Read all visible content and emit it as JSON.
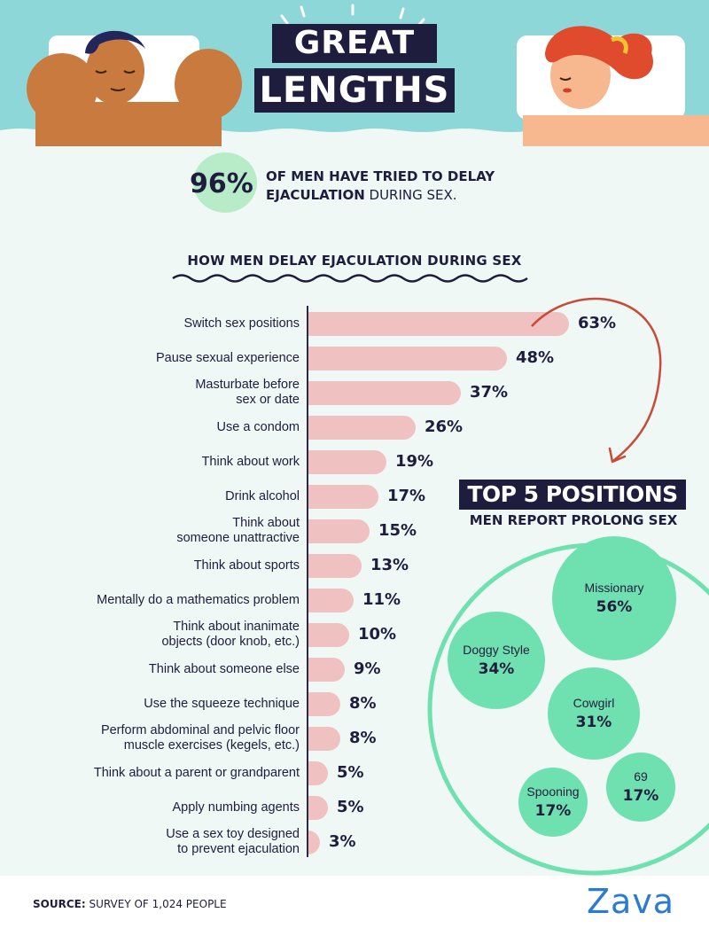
{
  "title": {
    "line1": "GREAT",
    "line2": "LENGTHS"
  },
  "stat": {
    "percent": "96%",
    "text_bold1": "OF MEN HAVE TRIED TO DELAY",
    "text_bold2": "EJACULATION",
    "text_regular": " DURING SEX."
  },
  "chart_data": [
    {
      "type": "bar",
      "orientation": "horizontal",
      "title": "HOW MEN DELAY EJACULATION DURING SEX",
      "categories": [
        "Switch sex positions",
        "Pause sexual experience",
        "Masturbate before sex or date",
        "Use a condom",
        "Think about work",
        "Drink alcohol",
        "Think about someone unattractive",
        "Think about sports",
        "Mentally do a mathematics problem",
        "Think about inanimate objects (door knob, etc.)",
        "Think about someone else",
        "Use the squeeze technique",
        "Perform abdominal and pelvic floor muscle exercises (kegels, etc.)",
        "Think about a parent or grandparent",
        "Apply numbing agents",
        "Use a sex toy designed to prevent ejaculation"
      ],
      "label_lines": [
        [
          "Switch sex positions"
        ],
        [
          "Pause sexual experience"
        ],
        [
          "Masturbate before",
          "sex or date"
        ],
        [
          "Use a condom"
        ],
        [
          "Think about work"
        ],
        [
          "Drink alcohol"
        ],
        [
          "Think about",
          "someone unattractive"
        ],
        [
          "Think about sports"
        ],
        [
          "Mentally do a mathematics problem"
        ],
        [
          "Think about inanimate",
          "objects (door knob, etc.)"
        ],
        [
          "Think about someone else"
        ],
        [
          "Use the squeeze technique"
        ],
        [
          "Perform abdominal and pelvic floor",
          "muscle exercises (kegels, etc.)"
        ],
        [
          "Think about a parent or grandparent"
        ],
        [
          "Apply numbing agents"
        ],
        [
          "Use a sex toy designed",
          "to prevent ejaculation"
        ]
      ],
      "values": [
        63,
        48,
        37,
        26,
        19,
        17,
        15,
        13,
        11,
        10,
        9,
        8,
        8,
        5,
        5,
        3
      ],
      "value_labels": [
        "63%",
        "48%",
        "37%",
        "26%",
        "19%",
        "17%",
        "15%",
        "13%",
        "11%",
        "10%",
        "9%",
        "8%",
        "8%",
        "5%",
        "5%",
        "3%"
      ],
      "xlim": [
        0,
        63
      ],
      "bar_color": "#f0c1c1"
    },
    {
      "type": "bubble",
      "title": "TOP 5 POSITIONS",
      "subtitle": "MEN REPORT PROLONG SEX",
      "categories": [
        "Missionary",
        "Doggy Style",
        "Cowgirl",
        "Spooning",
        "69"
      ],
      "values": [
        56,
        34,
        31,
        17,
        17
      ],
      "value_labels": [
        "56%",
        "34%",
        "31%",
        "17%",
        "17%"
      ],
      "bubble_color": "#6fe0b0"
    }
  ],
  "footer": {
    "source_label": "SOURCE:",
    "source_text": " SURVEY OF 1,024 PEOPLE",
    "logo": "Zava"
  },
  "colors": {
    "header_bg": "#8dd7d8",
    "page_bg": "#eff8f4",
    "navy": "#1f1d3d",
    "accent_arrow": "#c94a36",
    "stat_circle": "#b8ecc9"
  }
}
